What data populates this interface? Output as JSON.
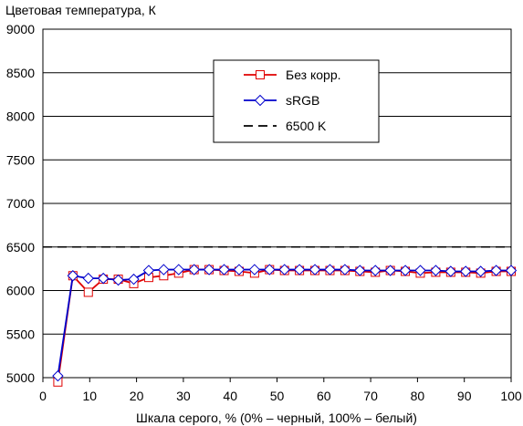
{
  "chart_data": {
    "type": "line",
    "title": "Цветовая температура, К",
    "xlabel": "Шкала серого, % (0% – черный, 100% – белый)",
    "ylabel": "",
    "xlim": [
      0,
      100
    ],
    "ylim": [
      5000,
      9000
    ],
    "x_ticks": [
      0,
      10,
      20,
      30,
      40,
      50,
      60,
      70,
      80,
      90,
      100
    ],
    "y_ticks": [
      5000,
      5500,
      6000,
      6500,
      7000,
      7500,
      8000,
      8500,
      9000
    ],
    "grid": "horizontal",
    "legend_position": "top-center",
    "series": [
      {
        "name": "Без корр.",
        "color": "#e00000",
        "marker": "square",
        "x": [
          3.2,
          6.4,
          9.7,
          12.9,
          16.1,
          19.4,
          22.6,
          25.8,
          29.0,
          32.3,
          35.5,
          38.7,
          41.9,
          45.2,
          48.4,
          51.6,
          54.8,
          58.1,
          61.3,
          64.5,
          67.7,
          71.0,
          74.2,
          77.4,
          80.6,
          83.9,
          87.1,
          90.3,
          93.5,
          96.8,
          100
        ],
        "values": [
          4950,
          6170,
          5980,
          6130,
          6130,
          6080,
          6150,
          6170,
          6200,
          6240,
          6240,
          6230,
          6220,
          6200,
          6240,
          6230,
          6230,
          6230,
          6230,
          6230,
          6220,
          6210,
          6230,
          6220,
          6200,
          6210,
          6210,
          6210,
          6200,
          6220,
          6220
        ]
      },
      {
        "name": "sRGB",
        "color": "#0000cc",
        "marker": "diamond",
        "x": [
          3.2,
          6.4,
          9.7,
          12.9,
          16.1,
          19.4,
          22.6,
          25.8,
          29.0,
          32.3,
          35.5,
          38.7,
          41.9,
          45.2,
          48.4,
          51.6,
          54.8,
          58.1,
          61.3,
          64.5,
          67.7,
          71.0,
          74.2,
          77.4,
          80.6,
          83.9,
          87.1,
          90.3,
          93.5,
          96.8,
          100
        ],
        "values": [
          5020,
          6170,
          6140,
          6140,
          6120,
          6130,
          6230,
          6240,
          6240,
          6240,
          6240,
          6240,
          6240,
          6240,
          6240,
          6240,
          6240,
          6240,
          6240,
          6240,
          6230,
          6230,
          6230,
          6230,
          6230,
          6230,
          6220,
          6220,
          6220,
          6230,
          6230
        ]
      },
      {
        "name": "6500 K",
        "color": "#000000",
        "dashed": true,
        "x": [
          0,
          100
        ],
        "values": [
          6500,
          6500
        ]
      }
    ]
  }
}
